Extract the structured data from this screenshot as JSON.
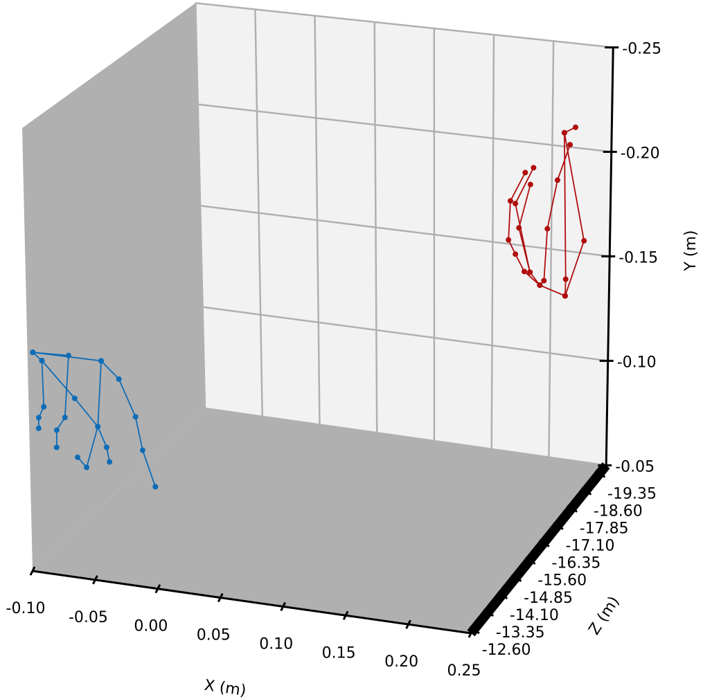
{
  "chart_data": {
    "type": "line3d",
    "xlabel": "X (m)",
    "ylabel": "Y (m)",
    "zlabel": "Z (m)",
    "xlim": [
      -0.1,
      0.25
    ],
    "xticks": [
      {
        "value": -0.1,
        "label": "-0.10"
      },
      -0.05,
      {
        "value": 0,
        "label": "0.00"
      },
      0.05,
      {
        "value": 0.1,
        "label": "0.10"
      },
      0.15,
      {
        "value": 0.2,
        "label": "0.20"
      },
      0.25
    ],
    "ylim": [
      -0.05,
      -0.25
    ],
    "yticks": [
      -0.25,
      {
        "value": -0.2,
        "label": "-0.20"
      },
      -0.15,
      {
        "value": -0.1,
        "label": "-0.10"
      },
      -0.05
    ],
    "zlim": [
      -12.45,
      -19.71
    ],
    "zticks": [
      {
        "value": -12.6,
        "label": "-12.60"
      },
      -13.35,
      {
        "value": -14.1,
        "label": "-14.10"
      },
      -14.85,
      {
        "value": -15.6,
        "label": "-15.60"
      },
      -16.35,
      {
        "value": -17.1,
        "label": "-17.10"
      },
      -17.85,
      {
        "value": -18.6,
        "label": "-18.60"
      },
      -19.35
    ],
    "grid": true,
    "series": [
      {
        "color": "#0f6cb6",
        "x": [
          -0.001,
          -0.0107,
          -0.016,
          -0.0286,
          -0.0423,
          -0.0958,
          null,
          -0.0958,
          -0.0678,
          -0.0716,
          -0.0783,
          -0.0786,
          null,
          -0.0958,
          -0.0888,
          -0.0881,
          -0.0923,
          -0.0925,
          null,
          -0.0888,
          -0.0636,
          -0.0458,
          -0.0391,
          -0.037,
          null,
          -0.0423,
          -0.0458,
          -0.0552,
          -0.0622
        ],
        "y": [
          -0.0956,
          -0.1112,
          -0.1258,
          -0.1418,
          -0.149,
          -0.149,
          null,
          -0.149,
          -0.1496,
          -0.1214,
          -0.1152,
          -0.1074,
          null,
          -0.149,
          -0.1458,
          -0.125,
          -0.1198,
          -0.115,
          null,
          -0.1458,
          -0.1306,
          -0.1192,
          -0.1104,
          -0.104,
          null,
          -0.149,
          -0.1192,
          -0.1002,
          -0.1042
        ],
        "z": [
          -12.45,
          -12.45,
          -12.45,
          -12.45,
          -12.45,
          -12.45,
          null,
          -12.45,
          -12.45,
          -12.45,
          -12.45,
          -12.45,
          null,
          -12.45,
          -12.45,
          -12.45,
          -12.45,
          -12.45,
          null,
          -12.45,
          -12.45,
          -12.45,
          -12.45,
          -12.45,
          null,
          -12.45,
          -12.45,
          -12.45,
          -12.45
        ]
      },
      {
        "color": "#b00d0d",
        "x": [
          0.2182,
          0.2336,
          0.2158,
          0.2251,
          null,
          0.2182,
          0.1965,
          0.1832,
          0.1755,
          0.1695,
          0.1709,
          0.1832,
          null,
          0.1965,
          0.188,
          0.1783,
          0.1877,
          null,
          0.188,
          0.1751,
          0.1902,
          null,
          0.1965,
          0.2,
          0.2024,
          0.2105,
          0.2207,
          null,
          0.2182,
          0.2185,
          0.2158
        ],
        "y": [
          -0.1324,
          -0.1598,
          -0.2102,
          -0.2134,
          null,
          -0.1324,
          -0.136,
          -0.1416,
          -0.1494,
          -0.1558,
          -0.1746,
          -0.189,
          null,
          -0.136,
          -0.1416,
          -0.1622,
          -0.1836,
          null,
          -0.1416,
          -0.1736,
          -0.1918,
          null,
          -0.136,
          -0.1384,
          -0.1634,
          -0.1872,
          -0.2048,
          null,
          -0.1324,
          -0.1404,
          -0.2102
        ],
        "z": [
          -19.35,
          -19.35,
          -19.35,
          -19.35,
          null,
          -19.35,
          -19.35,
          -19.35,
          -19.35,
          -19.35,
          -19.35,
          -19.35,
          null,
          -19.35,
          -19.35,
          -19.35,
          -19.35,
          null,
          -19.35,
          -19.35,
          -19.35,
          null,
          -19.35,
          -19.35,
          -19.35,
          -19.35,
          -19.35,
          null,
          -19.35,
          -19.35,
          -19.35
        ]
      }
    ]
  }
}
